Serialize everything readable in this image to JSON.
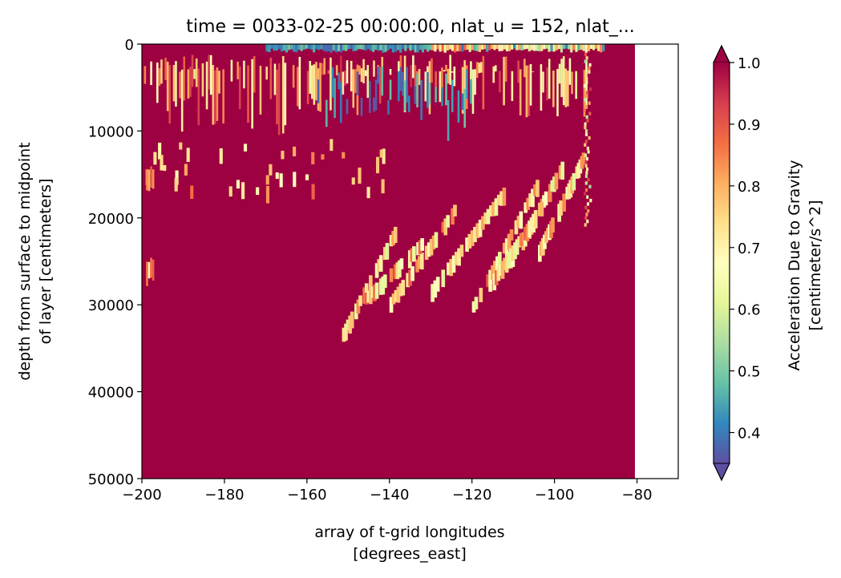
{
  "chart_data": {
    "type": "heatmap",
    "title": "time = 0033-02-25 00:00:00, nlat_u = 152, nlat_...",
    "xlabel": "array of t-grid longitudes",
    "xlabel_units": "[degrees_east]",
    "ylabel": "depth from surface to midpoint",
    "ylabel_line2": "of layer [centimeters]",
    "xlim": [
      -200,
      -70
    ],
    "ylim": [
      50000,
      0
    ],
    "y_inverted": true,
    "x_ticks": [
      -200,
      -180,
      -160,
      -140,
      -120,
      -100,
      -80
    ],
    "x_tick_labels": [
      "−200",
      "−180",
      "−160",
      "−140",
      "−120",
      "−100",
      "−80"
    ],
    "y_ticks": [
      0,
      10000,
      20000,
      30000,
      40000,
      50000
    ],
    "y_tick_labels": [
      "0",
      "10000",
      "20000",
      "30000",
      "40000",
      "50000"
    ],
    "data_extent": {
      "x": [
        -200,
        -80.5
      ],
      "y": [
        0,
        50000
      ]
    },
    "dominant_value": 1.0,
    "colorbar": {
      "label": "Acceleration Due to Gravity",
      "units": "[centimeter/s^2]",
      "vmin": 0.35,
      "vmax": 1.0,
      "ticks": [
        0.4,
        0.5,
        0.6,
        0.7,
        0.8,
        0.9,
        1.0
      ],
      "tick_labels": [
        "0.4",
        "0.5",
        "0.6",
        "0.7",
        "0.8",
        "0.9",
        "1.0"
      ],
      "extend": "both",
      "colormap": "Spectral_r",
      "colormap_stops": [
        "#5e4fa2",
        "#3288bd",
        "#66c2a5",
        "#abdda4",
        "#e6f598",
        "#ffffbf",
        "#fee08b",
        "#fdae61",
        "#f46d43",
        "#d53e4f",
        "#9e0142"
      ]
    },
    "features": [
      {
        "region": "surface band",
        "x_range": [
          -170,
          -88
        ],
        "depth_range": [
          0,
          800
        ],
        "values": "low 0.35-0.6 mixed with 0.7-0.9"
      },
      {
        "region": "upper layer streaks",
        "x_range": [
          -200,
          -92
        ],
        "depth_range": [
          800,
          12000
        ],
        "values": "0.4-0.9 vertical streaks"
      },
      {
        "region": "low-value patches",
        "x_range": [
          -158,
          -120
        ],
        "depth_range": [
          2500,
          11000
        ],
        "values": "0.35-0.5"
      },
      {
        "region": "deep diagonal streaks",
        "x_range": [
          -152,
          -93
        ],
        "depth_range": [
          12000,
          34000
        ],
        "values": "0.6-0.9 sloping streaks"
      }
    ]
  }
}
